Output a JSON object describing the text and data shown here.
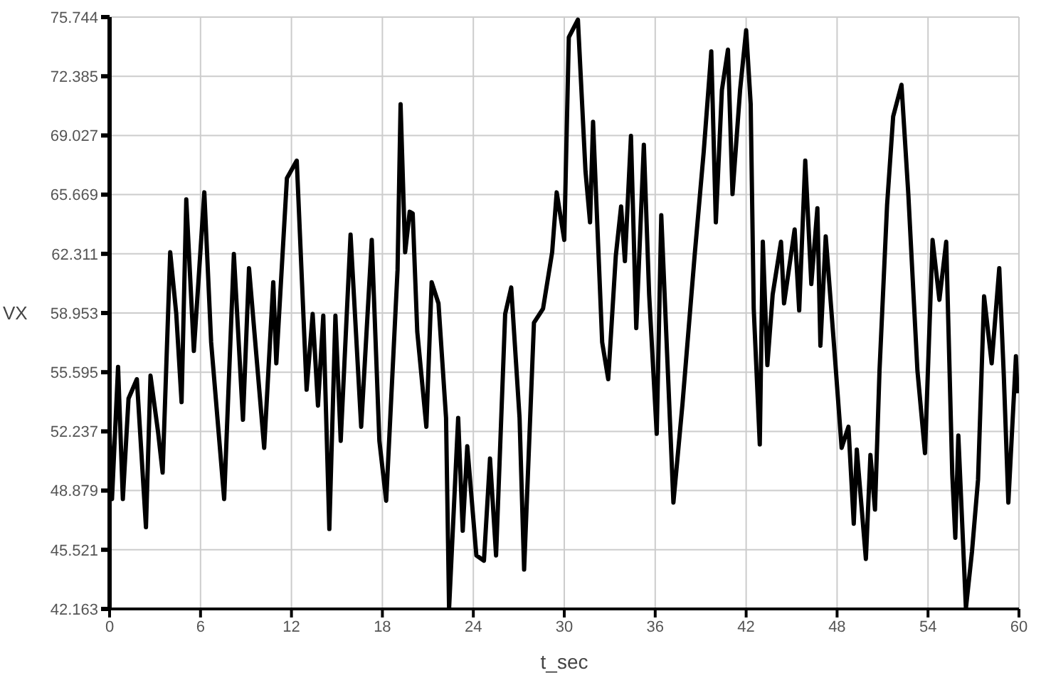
{
  "chart_data": {
    "type": "line",
    "xlabel": "t_sec",
    "ylabel": "VX",
    "color": "#000000",
    "x": [
      0,
      0.16,
      0.56,
      0.875,
      1.25,
      1.8,
      2.4,
      2.7,
      3.2,
      3.5,
      4.0,
      4.4,
      4.75,
      5.06,
      5.56,
      6.25,
      6.7,
      7.56,
      8.2,
      8.8,
      9.2,
      10.2,
      10.8,
      11.0,
      11.7,
      12.35,
      13.0,
      13.4,
      13.75,
      14.1,
      14.5,
      14.9,
      15.25,
      15.9,
      16.6,
      17.3,
      17.8,
      18.25,
      19.0,
      19.2,
      19.5,
      19.8,
      20.0,
      20.3,
      20.9,
      21.25,
      21.7,
      22.2,
      22.4,
      23.0,
      23.3,
      23.6,
      24.2,
      24.7,
      25.1,
      25.5,
      26.1,
      26.5,
      27.05,
      27.35,
      28.0,
      28.6,
      29.2,
      29.5,
      30.0,
      30.3,
      30.9,
      31.4,
      31.7,
      31.9,
      32.5,
      32.9,
      33.4,
      33.75,
      34.0,
      34.4,
      34.75,
      35.25,
      35.6,
      36.1,
      36.4,
      37.2,
      37.8,
      38.6,
      39.2,
      39.7,
      40.0,
      40.4,
      40.8,
      41.1,
      41.6,
      42.0,
      42.3,
      42.5,
      42.9,
      43.1,
      43.4,
      43.75,
      44.3,
      44.5,
      45.2,
      45.5,
      45.9,
      46.3,
      46.7,
      46.9,
      47.25,
      47.8,
      48.3,
      48.75,
      49.1,
      49.3,
      49.9,
      50.2,
      50.5,
      50.8,
      51.3,
      51.7,
      52.25,
      52.7,
      53.3,
      53.8,
      54.3,
      54.75,
      55.2,
      55.6,
      55.8,
      56.0,
      56.5,
      56.9,
      57.3,
      57.7,
      58.2,
      58.7,
      59.0,
      59.3,
      59.8,
      59.9
    ],
    "values": [
      52.2,
      48.4,
      55.9,
      48.4,
      54.1,
      55.2,
      46.8,
      55.4,
      52.2,
      49.9,
      62.4,
      58.9,
      53.9,
      65.4,
      56.8,
      65.8,
      57.3,
      48.4,
      62.3,
      52.9,
      61.5,
      51.3,
      60.7,
      56.1,
      66.6,
      67.6,
      54.6,
      58.9,
      53.7,
      58.8,
      46.7,
      58.8,
      51.7,
      63.4,
      52.5,
      63.1,
      51.7,
      48.3,
      61.4,
      70.8,
      62.4,
      64.7,
      64.6,
      57.9,
      52.5,
      60.7,
      59.5,
      53.0,
      42.2,
      53.0,
      46.6,
      51.4,
      45.2,
      44.9,
      50.7,
      45.2,
      58.9,
      60.4,
      53.0,
      44.4,
      58.4,
      59.2,
      62.4,
      65.8,
      63.1,
      74.6,
      75.6,
      67.0,
      64.1,
      69.8,
      57.3,
      55.2,
      62.2,
      65.0,
      61.9,
      69.0,
      58.1,
      68.5,
      60.0,
      52.1,
      64.5,
      48.2,
      53.8,
      62.2,
      68.1,
      73.8,
      64.1,
      71.6,
      73.9,
      65.7,
      71.6,
      75.0,
      70.8,
      59.2,
      51.5,
      63.0,
      56.0,
      60.0,
      63.0,
      59.5,
      63.7,
      59.1,
      67.6,
      60.6,
      64.9,
      57.1,
      63.3,
      57.1,
      51.3,
      52.5,
      47.0,
      51.2,
      45.0,
      50.9,
      47.8,
      55.7,
      65.1,
      70.1,
      71.9,
      65.7,
      55.7,
      51.0,
      63.1,
      59.7,
      63.0,
      49.8,
      46.2,
      52.0,
      42.2,
      45.4,
      49.5,
      59.9,
      56.1,
      61.5,
      55.4,
      48.2,
      56.5,
      54.4
    ],
    "xlim": [
      0,
      60
    ],
    "xticks": [
      0,
      6,
      12,
      18,
      24,
      30,
      36,
      42,
      48,
      54,
      60
    ],
    "ylim": [
      42.163,
      75.744
    ],
    "yticks": [
      42.163,
      45.521,
      48.879,
      52.237,
      55.595,
      58.953,
      62.311,
      65.669,
      69.027,
      72.385,
      75.744
    ],
    "grid": true
  }
}
